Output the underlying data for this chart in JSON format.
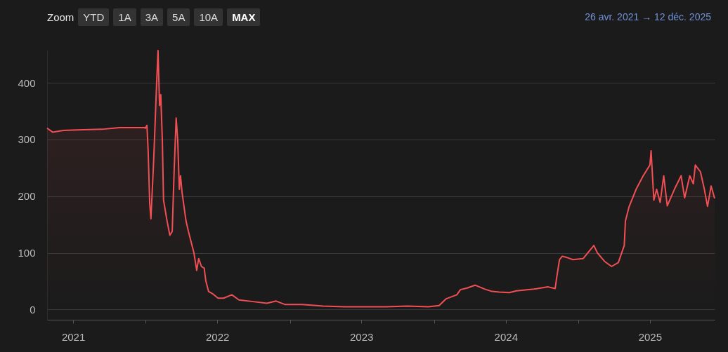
{
  "chart_data": {
    "type": "area",
    "color": "#f24f55",
    "x": [
      "2021-04-26",
      "2021-05-10",
      "2021-06-06",
      "2021-07-12",
      "2021-09-12",
      "2021-10-26",
      "2021-12-28",
      "2021-12-31",
      "2022-01-04",
      "2022-01-07",
      "2022-01-11",
      "2022-01-14",
      "2022-01-20",
      "2022-01-23",
      "2022-01-27",
      "2022-02-01",
      "2022-02-05",
      "2022-02-08",
      "2022-02-12",
      "2022-02-15",
      "2022-02-24",
      "2022-03-03",
      "2022-03-09",
      "2022-03-14",
      "2022-03-19",
      "2022-03-23",
      "2022-03-27",
      "2022-03-30",
      "2022-04-03",
      "2022-04-08",
      "2022-04-13",
      "2022-04-19",
      "2022-04-26",
      "2022-05-03",
      "2022-05-10",
      "2022-05-15",
      "2022-05-22",
      "2022-05-29",
      "2022-06-02",
      "2022-06-09",
      "2022-06-19",
      "2022-07-03",
      "2022-07-17",
      "2022-08-07",
      "2022-08-25",
      "2022-09-30",
      "2022-11-04",
      "2022-11-27",
      "2022-12-19",
      "2023-02-01",
      "2023-03-26",
      "2023-05-19",
      "2023-07-11",
      "2023-09-02",
      "2023-10-26",
      "2023-12-18",
      "2024-01-14",
      "2024-02-01",
      "2024-02-28",
      "2024-03-08",
      "2024-03-25",
      "2024-04-14",
      "2024-05-09",
      "2024-05-27",
      "2024-06-14",
      "2024-07-10",
      "2024-07-28",
      "2024-09-10",
      "2024-10-16",
      "2024-11-03",
      "2024-11-07",
      "2024-11-14",
      "2024-11-21",
      "2024-12-02",
      "2024-12-18",
      "2025-01-13",
      "2025-02-09",
      "2025-02-18",
      "2025-03-08",
      "2025-03-26",
      "2025-04-12",
      "2025-04-27",
      "2025-04-30",
      "2025-05-09",
      "2025-05-27",
      "2025-06-14",
      "2025-07-01",
      "2025-07-04",
      "2025-07-11",
      "2025-07-18",
      "2025-07-27",
      "2025-08-05",
      "2025-08-14",
      "2025-09-01",
      "2025-09-18",
      "2025-09-27",
      "2025-10-10",
      "2025-10-19",
      "2025-10-24",
      "2025-11-06",
      "2025-11-16",
      "2025-11-24",
      "2025-12-03",
      "2025-12-12"
    ],
    "values": [
      320,
      313,
      316,
      317,
      318,
      321,
      321,
      320,
      325,
      280,
      187,
      160,
      248,
      298,
      373,
      457,
      360,
      379,
      298,
      193,
      156,
      131,
      138,
      248,
      338,
      298,
      212,
      236,
      206,
      181,
      156,
      138,
      119,
      100,
      69,
      90,
      76,
      73,
      51,
      32,
      28,
      20,
      20,
      26,
      17,
      14,
      11,
      15,
      9,
      9,
      6,
      5,
      5,
      5,
      6,
      5,
      7,
      19,
      26,
      35,
      38,
      43,
      36,
      32,
      31,
      30,
      33,
      36,
      40,
      37,
      57,
      88,
      94,
      92,
      88,
      90,
      113,
      100,
      85,
      76,
      83,
      113,
      156,
      181,
      212,
      236,
      255,
      280,
      193,
      212,
      189,
      236,
      183,
      212,
      236,
      197,
      236,
      222,
      255,
      243,
      212,
      182,
      218,
      196
    ],
    "xlim": [
      "2021-04-26",
      "2025-12-12"
    ],
    "xticks": [
      {
        "value": "2021-07-01",
        "label": "2021"
      },
      {
        "value": "2022-01-01",
        "label": null
      },
      {
        "value": "2022-07-01",
        "label": "2022"
      },
      {
        "value": "2023-01-01",
        "label": null
      },
      {
        "value": "2023-07-01",
        "label": "2023"
      },
      {
        "value": "2024-01-01",
        "label": null
      },
      {
        "value": "2024-07-01",
        "label": "2024"
      },
      {
        "value": "2025-01-01",
        "label": null
      },
      {
        "value": "2025-07-01",
        "label": "2025"
      }
    ],
    "ylim": [
      -18,
      457
    ],
    "yticks": [
      0,
      100,
      200,
      300,
      400
    ],
    "grid": "y",
    "annotations": [
      "Zoom",
      "YTD",
      "1A",
      "3A",
      "5A",
      "10A",
      "MAX",
      "26 avr. 2021 → 12 déc. 2025"
    ]
  }
}
